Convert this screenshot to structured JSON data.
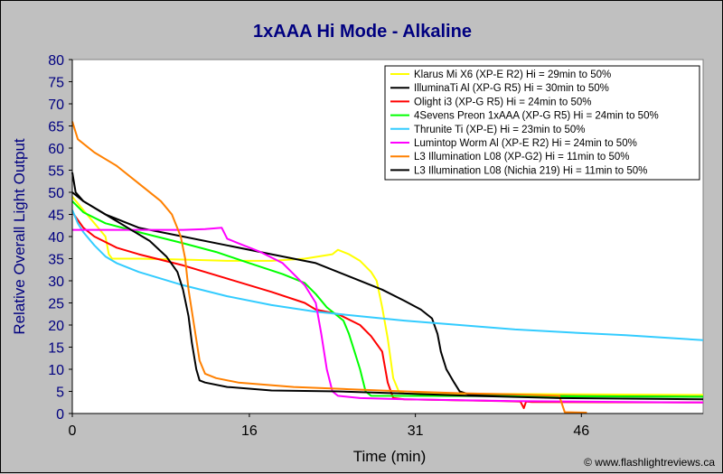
{
  "chart_data": {
    "type": "line",
    "title": "1xAAA Hi Mode - Alkaline",
    "xlabel": "Time (min)",
    "ylabel": "Relative Overall Light Output",
    "xlim": [
      0,
      57
    ],
    "ylim": [
      0,
      80
    ],
    "xticks": [
      0,
      16,
      31,
      46
    ],
    "yticks": [
      0,
      5,
      10,
      15,
      20,
      25,
      30,
      35,
      40,
      45,
      50,
      55,
      60,
      65,
      70,
      75,
      80
    ],
    "grid": false,
    "legend_position": "top-right",
    "credit": "© www.flashlightreviews.ca",
    "series": [
      {
        "name": "Klarus Mi X6 (XP-E R2) Hi = 29min to 50%",
        "color": "#ffff00",
        "points": [
          [
            0,
            49
          ],
          [
            1,
            46
          ],
          [
            2,
            43
          ],
          [
            3,
            40
          ],
          [
            3.3,
            36
          ],
          [
            3.6,
            35
          ],
          [
            6,
            35
          ],
          [
            10,
            34.8
          ],
          [
            14,
            34.5
          ],
          [
            18,
            34.5
          ],
          [
            21,
            35
          ],
          [
            23.5,
            36
          ],
          [
            24,
            37
          ],
          [
            25,
            36
          ],
          [
            26,
            34.5
          ],
          [
            27,
            32
          ],
          [
            27.5,
            30
          ],
          [
            28,
            24
          ],
          [
            28.5,
            17
          ],
          [
            29,
            8
          ],
          [
            29.5,
            5
          ],
          [
            30,
            4.5
          ],
          [
            57,
            4.2
          ]
        ]
      },
      {
        "name": "IlluminaTi Al (XP-G R5) Hi = 30min to 50%",
        "color": "#000000",
        "points": [
          [
            0,
            50
          ],
          [
            1,
            48
          ],
          [
            3,
            45
          ],
          [
            6,
            42
          ],
          [
            10,
            40
          ],
          [
            14,
            38
          ],
          [
            18,
            36
          ],
          [
            22,
            34
          ],
          [
            25,
            31
          ],
          [
            28,
            28
          ],
          [
            30,
            25.5
          ],
          [
            31.5,
            23.5
          ],
          [
            32.5,
            21.5
          ],
          [
            33,
            18
          ],
          [
            33.3,
            14
          ],
          [
            33.8,
            10
          ],
          [
            34.5,
            7
          ],
          [
            35,
            5
          ],
          [
            36,
            4.2
          ],
          [
            40,
            4
          ],
          [
            57,
            3.8
          ]
        ]
      },
      {
        "name": "Olight i3 (XP-G R5) Hi = 24min to 50%",
        "color": "#ff0000",
        "points": [
          [
            0,
            45.5
          ],
          [
            1,
            42
          ],
          [
            2,
            40
          ],
          [
            4,
            37.5
          ],
          [
            6,
            36
          ],
          [
            10,
            33.5
          ],
          [
            14,
            30.5
          ],
          [
            18,
            27.5
          ],
          [
            21,
            25
          ],
          [
            22,
            23.5
          ],
          [
            24,
            22.5
          ],
          [
            26,
            20
          ],
          [
            27,
            17.5
          ],
          [
            28,
            14
          ],
          [
            28.5,
            7
          ],
          [
            29,
            3.5
          ],
          [
            30,
            3.2
          ],
          [
            39,
            2.8
          ],
          [
            40.5,
            2.7
          ],
          [
            40.8,
            1.2
          ],
          [
            41,
            2.7
          ],
          [
            41.5,
            2.6
          ],
          [
            57,
            2.5
          ]
        ]
      },
      {
        "name": "4Sevens Preon 1xAAA (XP-G R5) Hi = 24min to 50%",
        "color": "#00ff00",
        "points": [
          [
            0,
            48
          ],
          [
            1,
            45.5
          ],
          [
            3,
            43
          ],
          [
            6,
            41
          ],
          [
            10,
            38.5
          ],
          [
            13,
            36.5
          ],
          [
            16,
            34
          ],
          [
            19,
            31.5
          ],
          [
            21,
            29.5
          ],
          [
            22,
            27
          ],
          [
            23,
            24
          ],
          [
            24,
            22
          ],
          [
            24.5,
            21
          ],
          [
            25,
            18
          ],
          [
            25.5,
            14
          ],
          [
            26,
            10
          ],
          [
            26.5,
            5
          ],
          [
            27,
            4
          ],
          [
            57,
            3.8
          ]
        ]
      },
      {
        "name": "Thrunite Ti (XP-E) Hi = 23min to 50%",
        "color": "#33ccff",
        "points": [
          [
            0,
            46
          ],
          [
            0.5,
            43
          ],
          [
            1,
            41
          ],
          [
            2,
            38
          ],
          [
            3,
            35.5
          ],
          [
            4,
            34
          ],
          [
            6,
            32
          ],
          [
            10,
            29
          ],
          [
            14,
            26.5
          ],
          [
            18,
            24.5
          ],
          [
            22,
            23
          ],
          [
            26,
            22
          ],
          [
            30,
            21
          ],
          [
            35,
            20
          ],
          [
            40,
            19
          ],
          [
            45,
            18.3
          ],
          [
            50,
            17.7
          ],
          [
            57,
            16.6
          ]
        ]
      },
      {
        "name": "Lumintop Worm Al (XP-E R2) Hi = 24min to 50%",
        "color": "#ff00ff",
        "points": [
          [
            0,
            41.5
          ],
          [
            3,
            41.5
          ],
          [
            6,
            41.5
          ],
          [
            10,
            41.5
          ],
          [
            12,
            41.7
          ],
          [
            13.5,
            42
          ],
          [
            14,
            39.5
          ],
          [
            15,
            38.5
          ],
          [
            17,
            36.5
          ],
          [
            19,
            34
          ],
          [
            20,
            31.5
          ],
          [
            21,
            29
          ],
          [
            22,
            25
          ],
          [
            22.5,
            18
          ],
          [
            23,
            10
          ],
          [
            23.5,
            5
          ],
          [
            24,
            4
          ],
          [
            26,
            3.5
          ],
          [
            30,
            3.2
          ],
          [
            40,
            2.8
          ],
          [
            57,
            2.5
          ]
        ]
      },
      {
        "name": "L3 Illumination L08 (XP-G2) Hi = 11min to 50%",
        "color": "#ff8000",
        "points": [
          [
            0,
            66
          ],
          [
            0.5,
            62
          ],
          [
            2,
            59
          ],
          [
            4,
            56
          ],
          [
            6,
            52
          ],
          [
            8,
            48
          ],
          [
            9,
            45
          ],
          [
            9.8,
            40
          ],
          [
            10.2,
            35
          ],
          [
            10.5,
            28
          ],
          [
            11,
            20
          ],
          [
            11.5,
            12
          ],
          [
            12,
            9
          ],
          [
            13,
            8
          ],
          [
            15,
            7
          ],
          [
            20,
            6
          ],
          [
            25,
            5.5
          ],
          [
            30,
            5
          ],
          [
            35,
            4.6
          ],
          [
            40,
            4.3
          ],
          [
            44,
            4
          ],
          [
            44.5,
            0.3
          ],
          [
            46.5,
            0.2
          ]
        ]
      },
      {
        "name": "L3 Illumination L08 (Nichia 219) Hi = 11min to 50%",
        "color": "#000000",
        "points": [
          [
            0,
            54.5
          ],
          [
            0.3,
            50
          ],
          [
            1,
            48
          ],
          [
            3,
            45
          ],
          [
            5,
            42
          ],
          [
            7,
            39
          ],
          [
            8.5,
            35.5
          ],
          [
            9.5,
            32
          ],
          [
            10,
            28
          ],
          [
            10.5,
            22
          ],
          [
            10.8,
            16
          ],
          [
            11.2,
            10
          ],
          [
            11.5,
            7.5
          ],
          [
            12,
            7
          ],
          [
            14,
            6
          ],
          [
            18,
            5.2
          ],
          [
            24,
            5
          ],
          [
            30,
            4.5
          ],
          [
            36,
            4
          ],
          [
            44,
            3.5
          ],
          [
            57,
            3.2
          ]
        ]
      }
    ]
  }
}
